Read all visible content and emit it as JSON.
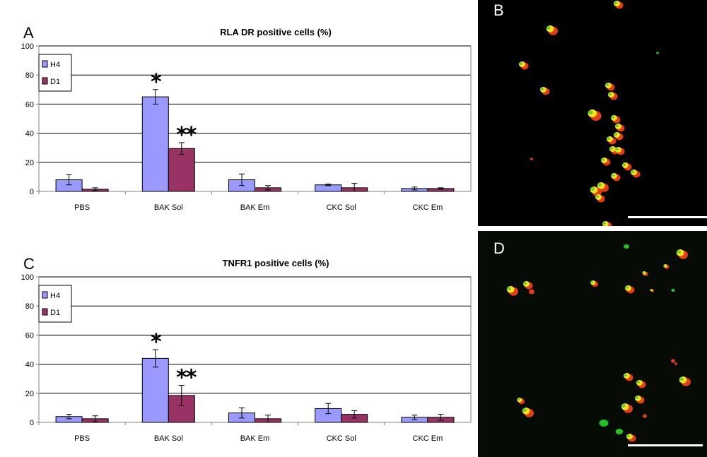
{
  "chart_data": [
    {
      "type": "bar",
      "panel": "A",
      "title": "RLA DR positive cells (%)",
      "categories": [
        "PBS",
        "BAK Sol",
        "BAK Em",
        "CKC Sol",
        "CKC Em"
      ],
      "ylim": [
        0,
        100
      ],
      "yticks": [
        0,
        20,
        40,
        60,
        80,
        100
      ],
      "grid": true,
      "legend_position": "top-left",
      "series": [
        {
          "name": "H4",
          "color": "#9999ff",
          "values": [
            8,
            65,
            8,
            4.5,
            2
          ],
          "errors": [
            3.5,
            5,
            4,
            0.5,
            1
          ]
        },
        {
          "name": "D1",
          "color": "#993366",
          "values": [
            1.5,
            29.5,
            2.5,
            2.5,
            2
          ],
          "errors": [
            1,
            4,
            1.5,
            3,
            0.5
          ]
        }
      ],
      "annotations": [
        {
          "category": "BAK Sol",
          "series": "H4",
          "text": "*"
        },
        {
          "category": "BAK Sol",
          "series": "D1",
          "text": "**"
        }
      ]
    },
    {
      "type": "bar",
      "panel": "C",
      "title": "TNFR1 positive cells (%)",
      "categories": [
        "PBS",
        "BAK Sol",
        "BAK Em",
        "CKC Sol",
        "CKC Em"
      ],
      "ylim": [
        0,
        100
      ],
      "yticks": [
        0,
        20,
        40,
        60,
        80,
        100
      ],
      "grid": true,
      "legend_position": "top-left",
      "series": [
        {
          "name": "H4",
          "color": "#9999ff",
          "values": [
            4,
            44,
            6.5,
            9.5,
            3.5
          ],
          "errors": [
            1.5,
            6,
            3.5,
            3.5,
            1.5
          ]
        },
        {
          "name": "D1",
          "color": "#993366",
          "values": [
            2.5,
            18.5,
            2.5,
            5.5,
            3.5
          ],
          "errors": [
            2,
            7,
            2.5,
            2.5,
            2
          ]
        }
      ],
      "annotations": [
        {
          "category": "BAK Sol",
          "series": "H4",
          "text": "*"
        },
        {
          "category": "BAK Sol",
          "series": "D1",
          "text": "**"
        }
      ]
    }
  ],
  "micrographs": [
    {
      "panel": "B"
    },
    {
      "panel": "D"
    }
  ]
}
